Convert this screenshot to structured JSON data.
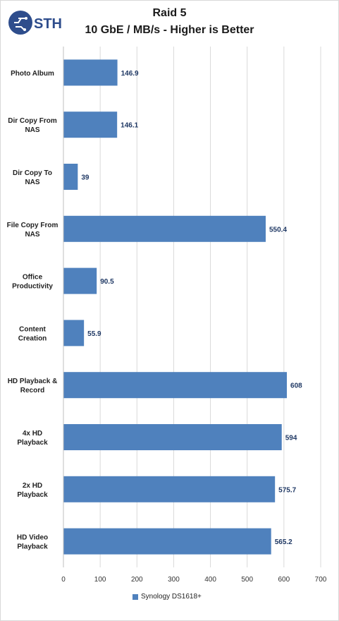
{
  "logo": {
    "text": "STH",
    "icon": "sth-circuit-logo-icon"
  },
  "chart_data": {
    "type": "bar",
    "orientation": "horizontal",
    "title": "Raid 5",
    "subtitle": "10 GbE / MB/s - Higher is Better",
    "categories": [
      "Photo Album",
      "Dir Copy From\nNAS",
      "Dir Copy To\nNAS",
      "File Copy From\nNAS",
      "Office\nProductivity",
      "Content\nCreation",
      "HD Playback &\nRecord",
      "4x HD\nPlayback",
      "2x HD\nPlayback",
      "HD Video\nPlayback"
    ],
    "series": [
      {
        "name": "Synology DS1618+",
        "values": [
          146.9,
          146.1,
          39,
          550.4,
          90.5,
          55.9,
          608,
          594,
          575.7,
          565.2
        ],
        "color": "#4f81bd"
      }
    ],
    "value_labels": [
      "146.9",
      "146.1",
      "39",
      "550.4",
      "90.5",
      "55.9",
      "608",
      "594",
      "575.7",
      "565.2"
    ],
    "xlim": [
      0,
      700
    ],
    "xticks": [
      0,
      100,
      200,
      300,
      400,
      500,
      600,
      700
    ],
    "grid": true,
    "legend_position": "bottom"
  }
}
